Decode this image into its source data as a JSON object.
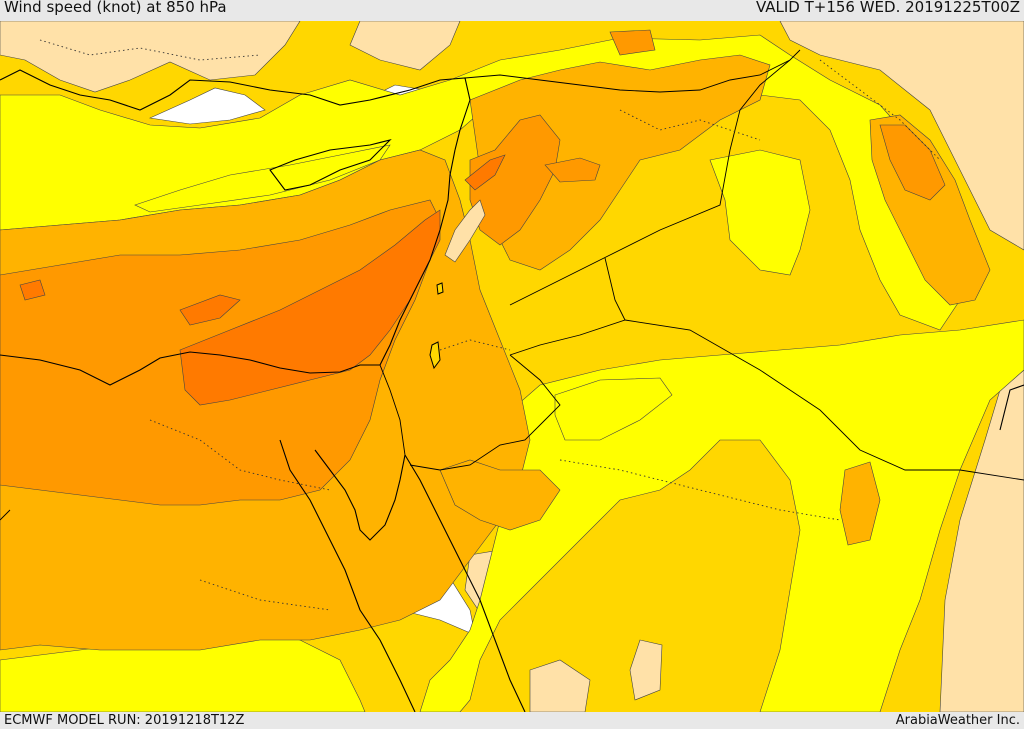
{
  "header": {
    "title": "Wind speed (knot) at 850 hPa",
    "valid": "VALID T+156 WED. 20191225T00Z"
  },
  "footer": {
    "model_run": "ECMWF MODEL RUN: 20191218T12Z",
    "credit": "ArabiaWeather Inc."
  },
  "palette": {
    "band_0_5": "#ffffff",
    "band_5_10": "#ffe1a8",
    "band_10_15": "#ffff00",
    "band_15_20": "#ffd700",
    "band_20_25": "#ffb300",
    "band_25_30": "#ff9900",
    "band_30_35": "#ff7a00",
    "coast": "#000000",
    "border": "#000000"
  }
}
